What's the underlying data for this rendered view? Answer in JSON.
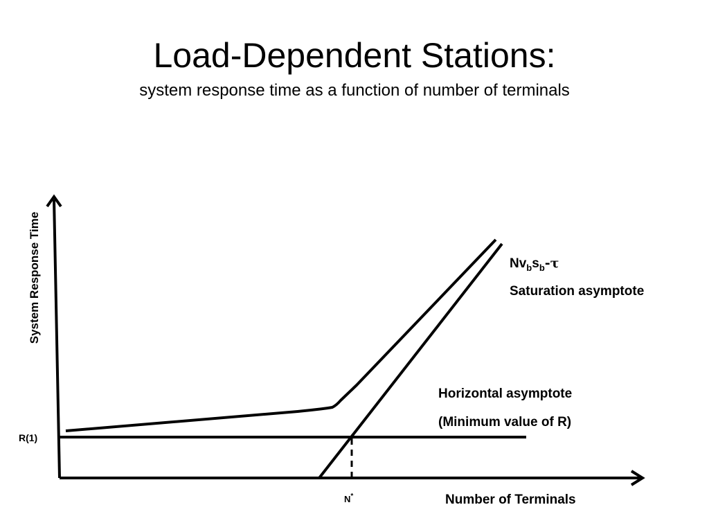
{
  "slide": {
    "title": "Load-Dependent Stations:",
    "subtitle": "system response time as a function of number of terminals"
  },
  "diagram": {
    "y_axis_label": "System Response Time",
    "x_axis_label": "Number of Terminals",
    "r1_label": "R(1)",
    "n_star_label": "N",
    "n_star_sup": "*",
    "saturation_formula": {
      "base": "Nv",
      "sub1": "b",
      "mid": "s",
      "sub2": "b",
      "tail": "-τ"
    },
    "saturation_label": "Saturation asymptote",
    "horizontal_label_line1": "Horizontal asymptote",
    "horizontal_label_line2": "(Minimum value of R)"
  }
}
